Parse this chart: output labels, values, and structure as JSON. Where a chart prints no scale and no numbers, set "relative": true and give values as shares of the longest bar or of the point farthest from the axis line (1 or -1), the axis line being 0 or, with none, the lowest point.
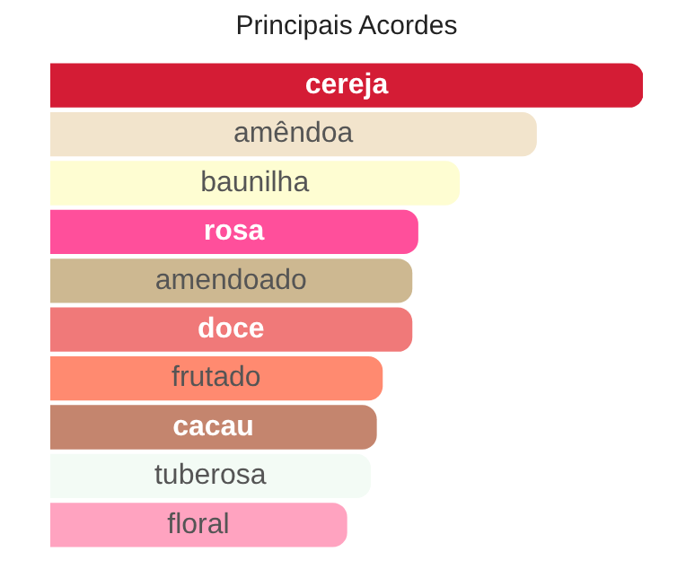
{
  "chart_data": {
    "type": "bar",
    "orientation": "horizontal",
    "relative": true,
    "title": "Principais Acordes",
    "categories": [
      "cereja",
      "amêndoa",
      "baunilha",
      "rosa",
      "amendoado",
      "doce",
      "frutado",
      "cacau",
      "tuberosa",
      "floral"
    ],
    "values": [
      1,
      0.82,
      0.69,
      0.62,
      0.61,
      0.61,
      0.56,
      0.55,
      0.54,
      0.5
    ],
    "colors": [
      "#d41c35",
      "#f2e4cc",
      "#fefdd2",
      "#ff4f9b",
      "#cdb891",
      "#f07979",
      "#ff8a70",
      "#c4856e",
      "#f3fbf5",
      "#ffa3c0"
    ],
    "legend": false
  }
}
